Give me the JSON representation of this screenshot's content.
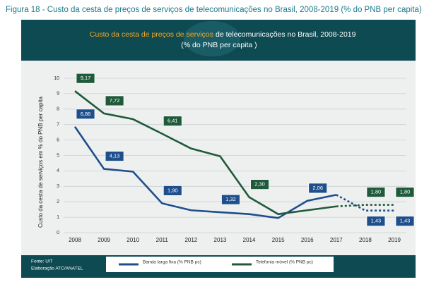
{
  "caption": "Figura 18 -   Custo da cesta de preços de serviços de telecomunicações no Brasil, 2008-2019 (% do PNB per capita)",
  "chart_data": {
    "type": "line",
    "title_highlight": "Custo da cesta de preços de serviços",
    "title": "de telecomunicações no Brasil, 2008-2019",
    "subtitle": "(% do PNB per capita )",
    "y_label": "Custo da cesta de serviços em % do PNB per capita",
    "categories": [
      "2008",
      "2009",
      "2010",
      "2011",
      "2012",
      "2013",
      "2014",
      "2015",
      "2016",
      "2017",
      "2018",
      "2019"
    ],
    "ylim": [
      0,
      10
    ],
    "yticks": [
      0,
      1,
      2,
      3,
      4,
      5,
      6,
      7,
      8,
      9,
      10
    ],
    "grid": true,
    "projection_from": 9,
    "series": [
      {
        "name": "Banda larga fixa (% PNB pc)",
        "color": "#1f4e8c",
        "values": [
          6.86,
          4.13,
          3.95,
          1.9,
          1.45,
          1.32,
          1.2,
          0.95,
          2.06,
          2.45,
          1.43,
          1.43
        ],
        "value_labels": [
          "6,86",
          "4,13",
          null,
          "1,90",
          null,
          "1,32",
          null,
          null,
          "2,06",
          null,
          "1,43",
          "1,43"
        ]
      },
      {
        "name": "Telefonia móvel (% PNB pc)",
        "color": "#1f5a3a",
        "values": [
          9.17,
          7.72,
          7.35,
          6.41,
          5.45,
          4.95,
          2.3,
          1.2,
          1.45,
          1.7,
          1.8,
          1.8
        ],
        "value_labels": [
          "9,17",
          "7,72",
          null,
          "6,41",
          null,
          null,
          "2,30",
          null,
          null,
          null,
          "1,80",
          "1,80"
        ]
      }
    ]
  },
  "footer": {
    "source": "Fonte: UIT",
    "elaboration": "Elaboração ATC/ANATEL"
  }
}
